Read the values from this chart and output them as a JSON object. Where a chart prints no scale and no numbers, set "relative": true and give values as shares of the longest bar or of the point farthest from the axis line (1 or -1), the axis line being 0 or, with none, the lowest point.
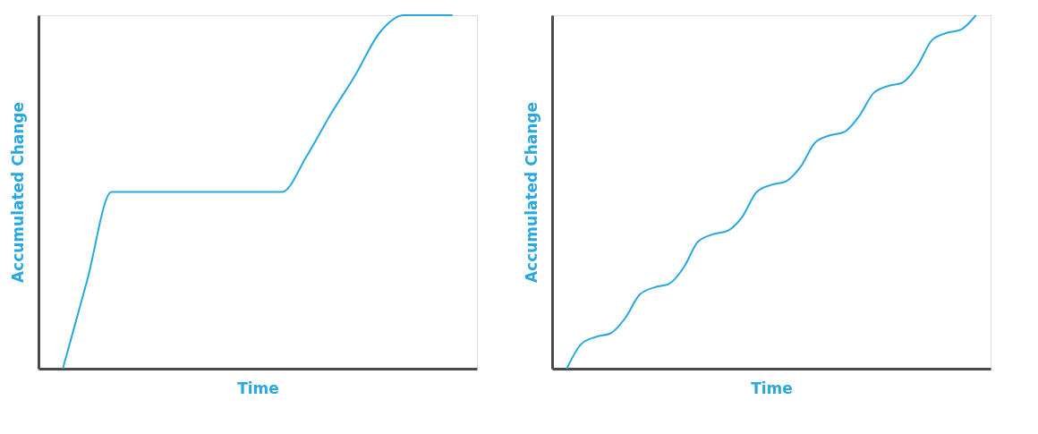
{
  "chart_data": [
    {
      "type": "line",
      "relative": true,
      "xlabel": "Time",
      "ylabel": "Accumulated Change",
      "tick_labels": false,
      "marker": "none",
      "line_style": "solid",
      "categories": [
        null,
        null,
        null,
        null,
        null,
        null,
        null,
        null,
        null,
        null,
        null,
        null,
        null,
        null,
        null,
        null,
        null
      ],
      "series": [
        {
          "color": "#29a8e0",
          "values": [
            0,
            0.25,
            0.5,
            0.5,
            0.5,
            0.5,
            0.5,
            0.5,
            0.5,
            0.5,
            0.6,
            0.72,
            0.83,
            0.95,
            1.0,
            1.0,
            1.0
          ]
        }
      ]
    },
    {
      "type": "line",
      "relative": true,
      "xlabel": "Time",
      "ylabel": "Accumulated Change",
      "tick_labels": false,
      "marker": "none",
      "line_style": "solid",
      "categories": [
        null,
        null,
        null,
        null,
        null,
        null,
        null,
        null,
        null,
        null,
        null,
        null,
        null,
        null,
        null,
        null,
        null,
        null,
        null,
        null,
        null,
        null,
        null,
        null,
        null,
        null,
        null,
        null,
        null
      ],
      "series": [
        {
          "color": "#29a8e0",
          "values": [
            0,
            0.07,
            0.09,
            0.1,
            0.143,
            0.21,
            0.23,
            0.24,
            0.286,
            0.36,
            0.38,
            0.39,
            0.429,
            0.5,
            0.52,
            0.53,
            0.571,
            0.64,
            0.66,
            0.67,
            0.714,
            0.78,
            0.8,
            0.81,
            0.857,
            0.93,
            0.95,
            0.96,
            1.0
          ]
        }
      ]
    }
  ]
}
